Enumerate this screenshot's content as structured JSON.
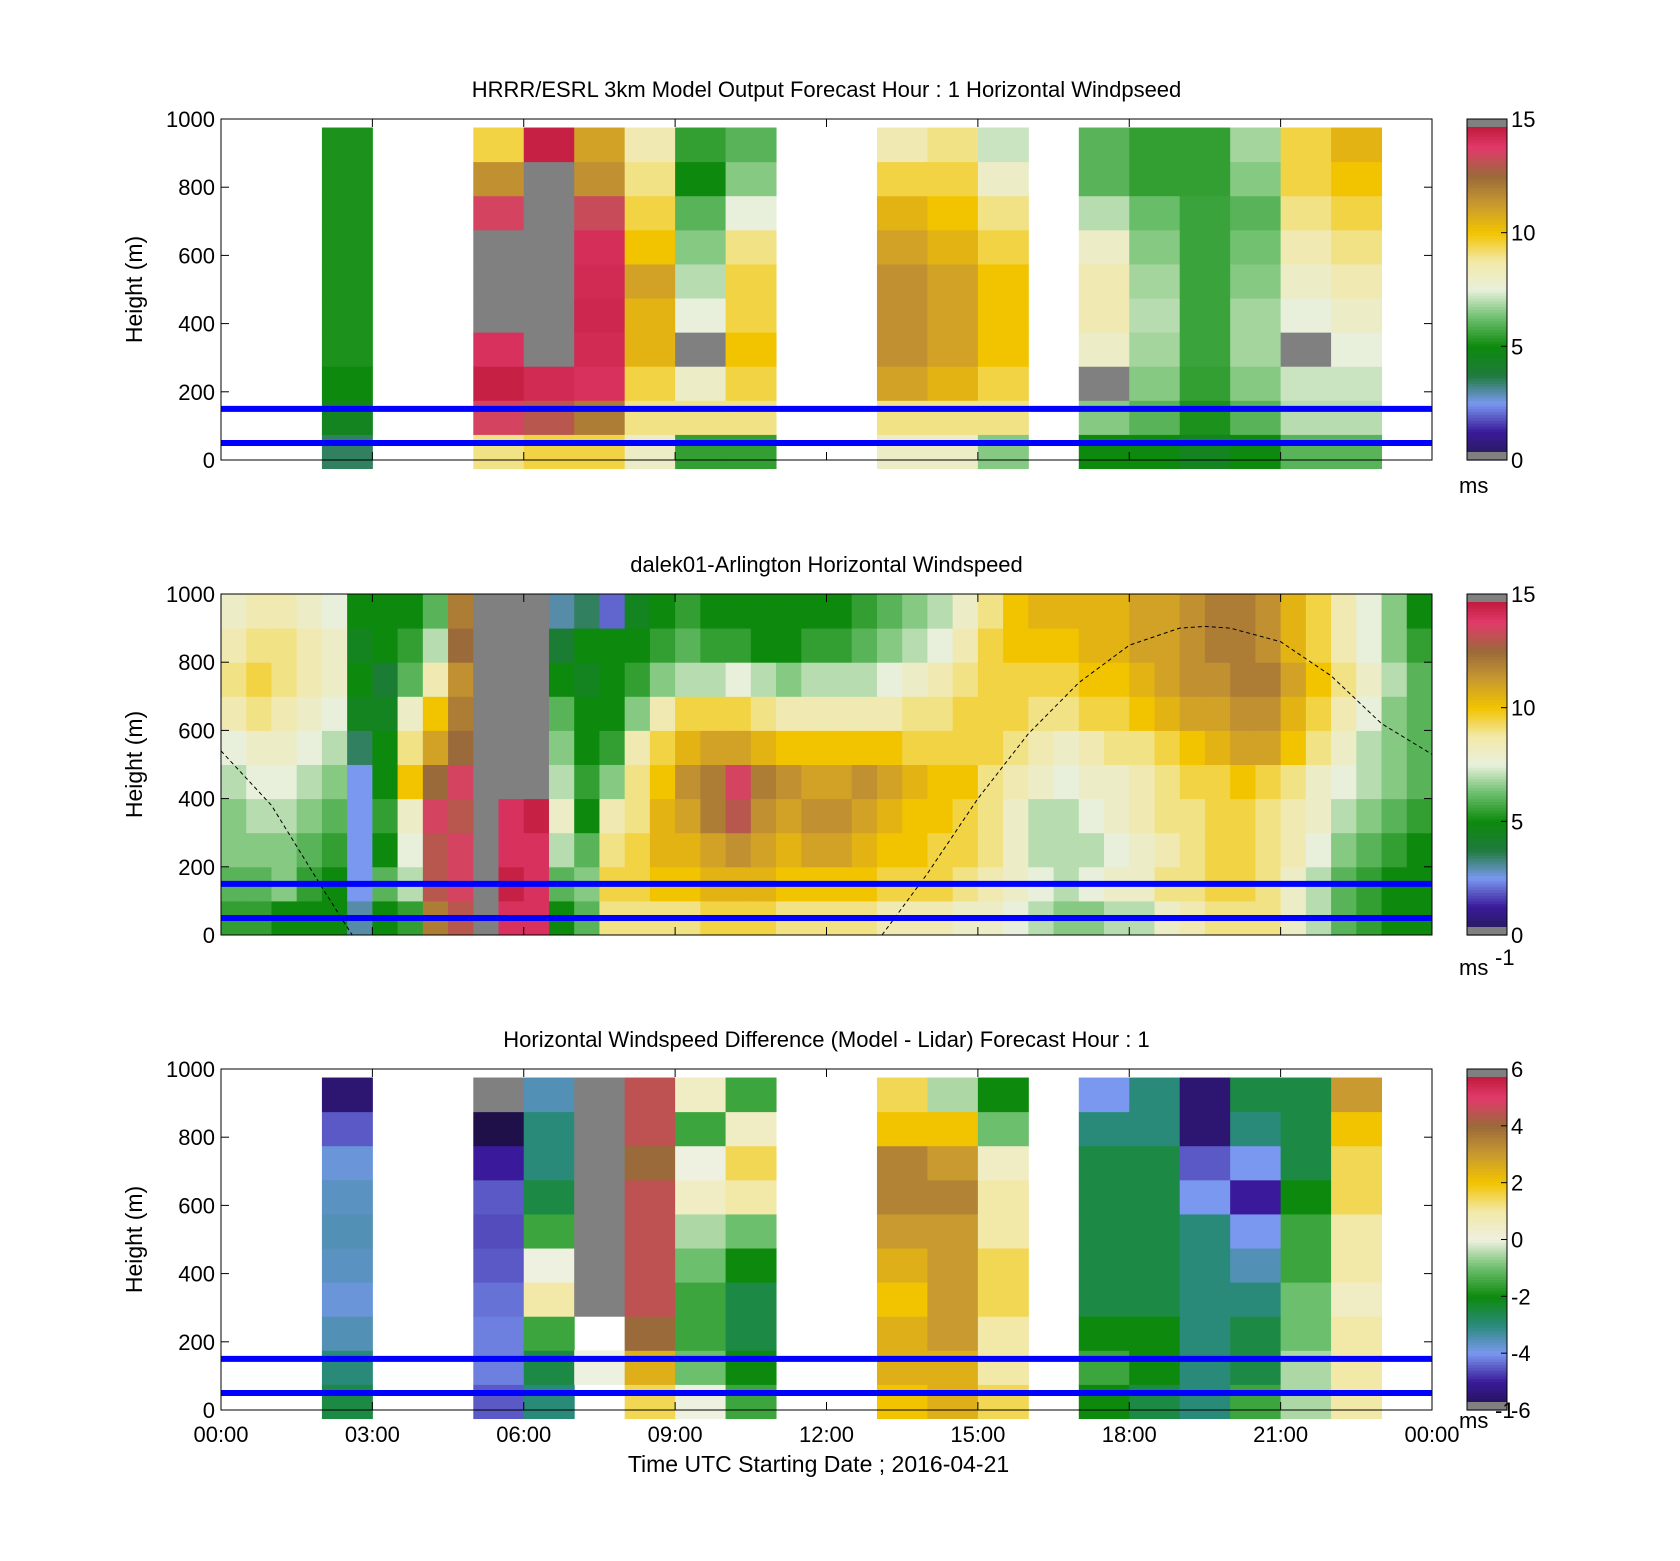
{
  "colors": {
    "wind_scale": [
      "#231c4e",
      "#3a1a9a",
      "#7a98f0",
      "#1f7a3c",
      "#0d8a0d",
      "#6cbf6c",
      "#e8f0dc",
      "#f2e9a8",
      "#f2c400",
      "#c99a2f",
      "#9a6a3a",
      "#e23a6a",
      "#b40f2c",
      "#808080"
    ],
    "diff_scale": [
      "#20104a",
      "#3a1a9a",
      "#7a98f0",
      "#2a8a7a",
      "#0d8a0d",
      "#6cbf6c",
      "#eef0e0",
      "#f2e9a8",
      "#f2c400",
      "#c99a2f",
      "#9a6a3a",
      "#e23a6a",
      "#b40f2c",
      "#808080"
    ],
    "reference_line": "#0000ff"
  },
  "chart_data": [
    {
      "type": "heatmap",
      "title": "HRRR/ESRL 3km Model Output   Forecast Hour : 1 Horizontal Windpseed",
      "ylabel": "Height (m)",
      "ylim": [
        0,
        1000
      ],
      "yticks": [
        "0",
        "200",
        "400",
        "600",
        "800",
        "1000"
      ],
      "xlim_hours": [
        0,
        24
      ],
      "x_start_hour": 2,
      "x_step_hours": 1,
      "colorbar": {
        "range": [
          0,
          15
        ],
        "ticks": [
          "0",
          "5",
          "10",
          "15"
        ],
        "unit": "ms"
      },
      "reference_lines_m": [
        150,
        50
      ],
      "heights_m": [
        25,
        125,
        225,
        325,
        425,
        525,
        625,
        725,
        825,
        925
      ],
      "columns": [
        [
          3.5,
          4.5,
          5.0,
          5.2,
          5.2,
          5.2,
          5.2,
          5.2,
          5.2,
          5.2
        ],
        null,
        null,
        [
          9.0,
          13.5,
          14.5,
          14.0,
          15.5,
          15.5,
          15.5,
          13.5,
          11.5,
          9.5
        ],
        [
          9.5,
          13.0,
          14.2,
          15.5,
          15.5,
          15.5,
          15.5,
          15.5,
          15.5,
          14.5
        ],
        [
          9.5,
          12.0,
          14.0,
          14.2,
          14.3,
          14.2,
          14.1,
          13.3,
          11.5,
          11.0
        ],
        [
          8.0,
          9.0,
          9.5,
          10.5,
          10.5,
          11.0,
          10.0,
          9.5,
          9.0,
          8.5
        ],
        [
          5.5,
          9.0,
          8.0,
          15.5,
          7.5,
          7.0,
          6.5,
          6.0,
          5.0,
          5.5
        ],
        [
          5.5,
          9.0,
          9.5,
          10.0,
          9.5,
          9.5,
          9.0,
          7.5,
          6.5,
          6.0
        ],
        null,
        null,
        [
          8.0,
          9.0,
          11.0,
          11.5,
          11.5,
          11.5,
          11.0,
          10.5,
          9.5,
          8.5
        ],
        [
          8.0,
          9.0,
          10.5,
          11.0,
          11.0,
          11.0,
          10.5,
          10.0,
          9.5,
          9.0
        ],
        [
          6.5,
          9.0,
          9.5,
          10.0,
          10.0,
          10.0,
          9.5,
          9.0,
          8.0,
          7.2
        ],
        null,
        [
          5.0,
          6.5,
          15.5,
          8.0,
          8.5,
          8.5,
          8.0,
          7.0,
          6.0,
          6.0
        ],
        [
          5.0,
          6.0,
          6.5,
          6.8,
          7.0,
          6.8,
          6.5,
          6.2,
          5.5,
          5.5
        ],
        [
          4.5,
          5.2,
          5.5,
          5.6,
          5.6,
          5.6,
          5.6,
          5.6,
          5.5,
          5.5
        ],
        [
          5.0,
          6.0,
          6.5,
          6.8,
          6.8,
          6.5,
          6.3,
          6.0,
          6.5,
          6.8
        ],
        [
          6.0,
          7.0,
          7.2,
          15.5,
          7.5,
          8.0,
          8.5,
          9.0,
          9.5,
          9.5
        ],
        [
          6.0,
          7.0,
          7.2,
          7.5,
          8.0,
          8.5,
          9.0,
          9.5,
          10.0,
          10.5
        ]
      ]
    },
    {
      "type": "heatmap",
      "title": "dalek01-Arlington  Horizontal Windspeed",
      "ylabel": "Height (m)",
      "ylim": [
        0,
        1000
      ],
      "yticks": [
        "0",
        "200",
        "400",
        "600",
        "800",
        "1000"
      ],
      "xlim_hours": [
        0,
        24
      ],
      "colorbar": {
        "range": [
          0,
          15
        ],
        "ticks": [
          "0",
          "5",
          "10",
          "15"
        ],
        "unit": "ms",
        "unit_exponent": "-1"
      },
      "reference_lines_m": [
        150,
        50
      ],
      "hours": [
        0.25,
        0.75,
        1.25,
        1.75,
        2.25,
        2.75,
        3.25,
        3.75,
        4.25,
        4.75,
        5.25,
        5.75,
        6.25,
        6.75,
        7.25,
        7.75,
        8.25,
        8.75,
        9.25,
        9.75,
        10.25,
        10.75,
        11.25,
        11.75,
        12.25,
        12.75,
        13.25,
        13.75,
        14.25,
        14.75,
        15.25,
        15.75,
        16.25,
        16.75,
        17.25,
        17.75,
        18.25,
        18.75,
        19.25,
        19.75,
        20.25,
        20.75,
        21.25,
        21.75,
        22.25,
        22.75,
        23.25,
        23.75
      ],
      "heights_m": [
        50,
        150,
        250,
        350,
        450,
        550,
        650,
        750,
        850,
        950
      ],
      "values": [
        [
          5.5,
          5.5,
          5.0,
          5.0,
          5.0,
          3.0,
          5.0,
          5.5,
          12.0,
          13.0,
          15.5,
          14.0,
          14.0,
          5.0,
          6.0,
          9.0,
          9.0,
          9.0,
          9.0,
          9.5,
          9.5,
          9.5,
          9.0,
          9.0,
          9.0,
          9.0,
          8.5,
          8.5,
          8.5,
          8.0,
          8.0,
          7.5,
          7.0,
          6.5,
          6.5,
          7.0,
          7.0,
          8.0,
          8.5,
          9.0,
          9.0,
          9.0,
          8.0,
          7.0,
          6.0,
          5.5,
          5.0,
          5.0
        ],
        [
          6.0,
          6.0,
          6.5,
          5.5,
          5.0,
          2.5,
          6.0,
          7.0,
          13.0,
          13.5,
          15.5,
          14.5,
          14.0,
          6.0,
          6.5,
          9.5,
          9.5,
          10.0,
          10.0,
          10.5,
          10.5,
          10.5,
          10.0,
          10.0,
          10.0,
          10.0,
          9.5,
          9.5,
          9.5,
          9.0,
          8.5,
          8.0,
          7.5,
          7.0,
          7.5,
          8.0,
          8.0,
          9.0,
          9.0,
          9.5,
          9.5,
          9.0,
          8.0,
          7.0,
          6.0,
          5.5,
          5.0,
          5.0
        ],
        [
          6.5,
          6.5,
          6.5,
          6.0,
          5.5,
          2.5,
          5.0,
          7.5,
          13.0,
          13.5,
          15.5,
          14.0,
          14.0,
          7.0,
          6.0,
          9.0,
          9.5,
          10.5,
          10.5,
          11.0,
          11.5,
          11.0,
          10.5,
          11.0,
          11.0,
          10.5,
          10.0,
          10.0,
          9.5,
          9.5,
          9.0,
          8.0,
          7.0,
          7.0,
          7.0,
          7.5,
          8.0,
          8.5,
          9.0,
          9.5,
          9.5,
          9.0,
          8.5,
          7.5,
          6.5,
          6.0,
          5.5,
          5.0
        ],
        [
          6.5,
          7.0,
          7.0,
          6.5,
          6.0,
          2.5,
          5.5,
          8.0,
          13.5,
          13.0,
          15.5,
          14.0,
          14.5,
          8.0,
          5.0,
          8.5,
          9.0,
          10.5,
          11.0,
          12.0,
          13.0,
          11.5,
          11.0,
          11.5,
          11.5,
          11.0,
          10.5,
          10.0,
          10.0,
          9.5,
          9.0,
          8.0,
          7.0,
          7.0,
          7.5,
          8.0,
          8.5,
          9.0,
          9.0,
          9.5,
          9.5,
          9.0,
          8.5,
          8.0,
          7.0,
          6.5,
          6.0,
          5.5
        ],
        [
          7.0,
          7.5,
          7.5,
          7.0,
          6.5,
          2.5,
          5.0,
          10.0,
          12.5,
          13.5,
          15.5,
          15.5,
          15.5,
          7.0,
          5.5,
          6.5,
          9.0,
          10.0,
          11.5,
          12.0,
          13.5,
          12.0,
          11.5,
          11.0,
          11.0,
          11.5,
          11.0,
          10.5,
          10.0,
          10.0,
          9.0,
          8.5,
          8.0,
          7.5,
          8.0,
          8.0,
          8.5,
          9.0,
          9.5,
          9.5,
          10.0,
          9.5,
          9.0,
          8.0,
          7.5,
          7.0,
          6.5,
          6.0
        ],
        [
          7.5,
          8.0,
          8.0,
          7.5,
          7.0,
          3.5,
          5.0,
          9.0,
          11.0,
          12.5,
          15.5,
          15.5,
          15.5,
          6.5,
          5.0,
          5.5,
          8.5,
          9.5,
          10.5,
          11.0,
          11.0,
          10.5,
          10.0,
          10.0,
          10.0,
          10.0,
          10.0,
          9.5,
          9.5,
          9.5,
          9.5,
          9.0,
          8.5,
          8.0,
          8.5,
          9.0,
          9.0,
          9.5,
          10.0,
          10.5,
          11.0,
          11.0,
          10.0,
          9.0,
          8.0,
          7.0,
          6.5,
          6.0
        ],
        [
          8.5,
          9.0,
          8.5,
          8.0,
          7.5,
          4.5,
          4.5,
          8.0,
          10.0,
          12.0,
          15.5,
          15.5,
          15.5,
          6.0,
          5.0,
          5.0,
          6.5,
          8.5,
          9.5,
          9.5,
          9.5,
          9.0,
          8.5,
          8.5,
          8.5,
          8.5,
          8.5,
          9.0,
          9.0,
          9.5,
          9.5,
          9.5,
          9.0,
          9.0,
          9.5,
          9.5,
          10.0,
          10.5,
          11.0,
          11.0,
          11.5,
          11.5,
          10.5,
          9.5,
          8.5,
          7.5,
          6.5,
          6.0
        ],
        [
          9.0,
          9.5,
          9.0,
          8.5,
          8.0,
          5.0,
          4.0,
          6.0,
          8.5,
          11.5,
          15.5,
          15.5,
          15.5,
          5.0,
          4.5,
          5.0,
          5.5,
          6.5,
          7.0,
          7.0,
          7.5,
          7.0,
          6.5,
          7.0,
          7.0,
          7.0,
          7.5,
          8.0,
          8.5,
          9.0,
          9.5,
          9.5,
          9.5,
          9.5,
          10.0,
          10.0,
          10.5,
          11.0,
          11.5,
          11.5,
          12.0,
          12.0,
          11.0,
          10.0,
          9.0,
          8.0,
          7.0,
          6.0
        ],
        [
          8.5,
          9.0,
          9.0,
          8.5,
          8.0,
          4.5,
          5.0,
          5.5,
          7.0,
          12.5,
          15.5,
          15.5,
          15.5,
          4.0,
          5.0,
          5.0,
          5.0,
          5.5,
          6.0,
          5.5,
          5.5,
          5.0,
          5.0,
          5.5,
          5.5,
          6.0,
          6.5,
          7.0,
          7.5,
          8.5,
          9.5,
          10.0,
          10.0,
          10.0,
          10.5,
          10.5,
          11.0,
          11.0,
          11.5,
          12.0,
          12.0,
          11.5,
          10.5,
          9.5,
          8.5,
          7.5,
          6.5,
          5.5
        ],
        [
          8.0,
          8.5,
          8.5,
          8.0,
          7.5,
          5.0,
          5.0,
          5.0,
          6.0,
          12.0,
          15.5,
          15.5,
          15.5,
          3.0,
          3.5,
          2.0,
          4.5,
          5.0,
          5.5,
          5.0,
          5.0,
          5.0,
          5.0,
          5.0,
          5.0,
          5.5,
          6.0,
          6.5,
          7.0,
          8.0,
          9.0,
          10.0,
          10.5,
          10.5,
          10.5,
          10.5,
          11.0,
          11.0,
          11.5,
          12.0,
          12.0,
          11.5,
          10.5,
          9.5,
          8.5,
          7.5,
          6.5,
          5.0
        ]
      ],
      "reference_curve": {
        "style": "dashed",
        "hours": [
          0,
          1,
          2,
          2.6,
          3,
          4,
          5,
          6,
          7,
          8,
          9,
          10,
          11,
          12,
          13.1,
          14,
          15,
          16,
          17,
          18,
          19,
          19.5,
          20,
          21,
          22,
          23,
          24
        ],
        "height_m": [
          540,
          380,
          140,
          0,
          null,
          null,
          null,
          null,
          null,
          null,
          null,
          null,
          null,
          null,
          0,
          180,
          400,
          590,
          740,
          850,
          900,
          905,
          900,
          860,
          760,
          620,
          530
        ]
      }
    },
    {
      "type": "heatmap",
      "title": "Horizontal Windspeed Difference (Model - Lidar) Forecast Hour : 1",
      "ylabel": "Height (m)",
      "xlabel": "Time UTC  Starting Date ; 2016-04-21",
      "ylim": [
        0,
        1000
      ],
      "yticks": [
        "0",
        "200",
        "400",
        "600",
        "800",
        "1000"
      ],
      "xlim_hours": [
        0,
        24
      ],
      "xticks": [
        "00:00",
        "03:00",
        "06:00",
        "09:00",
        "12:00",
        "15:00",
        "18:00",
        "21:00",
        "00:00"
      ],
      "x_start_hour": 2,
      "x_step_hours": 1,
      "colorbar": {
        "range": [
          -6,
          6
        ],
        "ticks": [
          "-6",
          "-4",
          "-2",
          "0",
          "2",
          "4",
          "6"
        ],
        "unit": "ms",
        "unit_exponent": "-1"
      },
      "reference_lines_m": [
        150,
        50
      ],
      "heights_m": [
        25,
        125,
        225,
        325,
        425,
        525,
        625,
        725,
        825,
        925
      ],
      "columns": [
        [
          -2.5,
          -3.0,
          -3.5,
          -3.8,
          -3.6,
          -3.5,
          -3.6,
          -3.8,
          -4.5,
          -5.5
        ],
        null,
        null,
        [
          -4.5,
          -4.2,
          -4.2,
          -4.3,
          -4.5,
          -4.6,
          -4.5,
          -5.0,
          -6.0,
          6.5
        ],
        [
          -3.0,
          -2.5,
          -1.5,
          1.0,
          0.0,
          -1.5,
          -2.5,
          -3.0,
          -3.0,
          -3.5
        ],
        [
          null,
          0.0,
          null,
          6.5,
          6.5,
          6.5,
          6.5,
          6.5,
          6.5,
          6.5
        ],
        [
          1.5,
          2.5,
          4.0,
          4.5,
          4.5,
          4.5,
          4.5,
          4.0,
          4.5,
          4.5
        ],
        [
          0.0,
          -1.0,
          -1.5,
          -1.5,
          -1.0,
          -0.5,
          0.5,
          0.0,
          -1.5,
          0.5
        ],
        [
          -1.5,
          -2.0,
          -2.5,
          -2.5,
          -2.0,
          -1.0,
          1.0,
          1.5,
          0.5,
          -1.5
        ],
        null,
        null,
        [
          2.0,
          2.5,
          2.5,
          2.0,
          2.5,
          3.0,
          3.5,
          3.5,
          2.0,
          1.5
        ],
        [
          2.5,
          2.5,
          3.0,
          3.0,
          3.0,
          3.0,
          3.5,
          3.0,
          2.0,
          -0.5
        ],
        [
          1.5,
          1.0,
          1.0,
          1.5,
          1.5,
          1.0,
          1.0,
          0.5,
          -1.0,
          -2.0
        ],
        null,
        [
          -2.0,
          -1.5,
          -2.0,
          -2.5,
          -2.5,
          -2.5,
          -2.5,
          -2.5,
          -3.0,
          -4.0
        ],
        [
          -2.5,
          -2.0,
          -2.0,
          -2.5,
          -2.5,
          -2.5,
          -2.5,
          -2.5,
          -3.0,
          -3.0
        ],
        [
          -3.0,
          -3.0,
          -3.0,
          -3.0,
          -3.0,
          -3.0,
          -4.0,
          -4.5,
          -5.5,
          -5.5
        ],
        [
          -1.5,
          -2.5,
          -2.5,
          -3.0,
          -3.5,
          -4.0,
          -5.0,
          -4.0,
          -3.0,
          -2.5
        ],
        [
          -0.5,
          -0.5,
          -1.0,
          -1.0,
          -1.5,
          -1.5,
          -2.0,
          -2.5,
          -2.5,
          -2.5
        ],
        [
          1.0,
          1.0,
          1.0,
          0.5,
          1.0,
          1.0,
          1.5,
          1.5,
          2.0,
          3.0
        ]
      ]
    }
  ]
}
